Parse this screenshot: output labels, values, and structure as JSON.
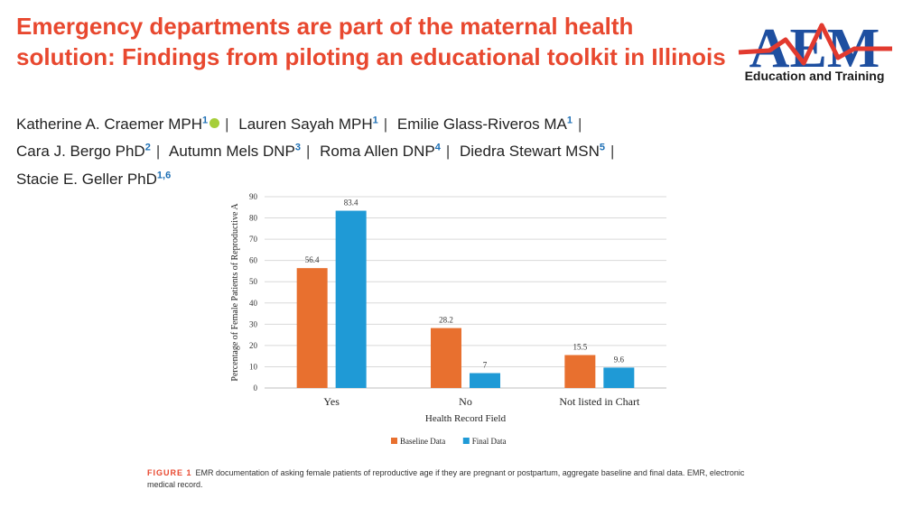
{
  "title": "Emergency departments are part of the maternal health solution: Findings from piloting an educational toolkit in Illinois",
  "logo": {
    "mark": "AEM",
    "subtitle": "Education and Training"
  },
  "authors": [
    {
      "name": "Katherine A. Craemer MPH",
      "sup": "1",
      "orcid": true
    },
    {
      "name": "Lauren Sayah MPH",
      "sup": "1"
    },
    {
      "name": "Emilie Glass-Riveros MA",
      "sup": "1"
    },
    {
      "name": "Cara J. Bergo PhD",
      "sup": "2"
    },
    {
      "name": "Autumn Mels DNP",
      "sup": "3"
    },
    {
      "name": "Roma Allen DNP",
      "sup": "4"
    },
    {
      "name": "Diedra Stewart MSN",
      "sup": "5"
    },
    {
      "name": "Stacie E. Geller PhD",
      "sup": "1,6"
    }
  ],
  "separator": "|",
  "chart_data": {
    "type": "bar",
    "categories": [
      "Yes",
      "No",
      "Not listed in Chart"
    ],
    "series": [
      {
        "name": "Baseline Data",
        "values": [
          56.4,
          28.2,
          15.5
        ],
        "color": "#e8702f"
      },
      {
        "name": "Final Data",
        "values": [
          83.4,
          7,
          9.6
        ],
        "color": "#1f9ad6"
      }
    ],
    "value_labels": [
      [
        "56.4",
        "28.2",
        "15.5"
      ],
      [
        "83.4",
        "7",
        "9.6"
      ]
    ],
    "yticks": [
      "0",
      "10",
      "20",
      "30",
      "40",
      "50",
      "60",
      "70",
      "80",
      "90"
    ],
    "ylim": [
      0,
      90
    ],
    "xlabel": "Health Record Field",
    "ylabel": "Percentage of Female Patients of Reproductive A",
    "legend_position": "bottom",
    "grid": true
  },
  "caption": {
    "label": "FIGURE 1",
    "text": "EMR documentation of asking female patients of reproductive age if they are pregnant or postpartum, aggregate baseline and final data. EMR, electronic medical record."
  }
}
